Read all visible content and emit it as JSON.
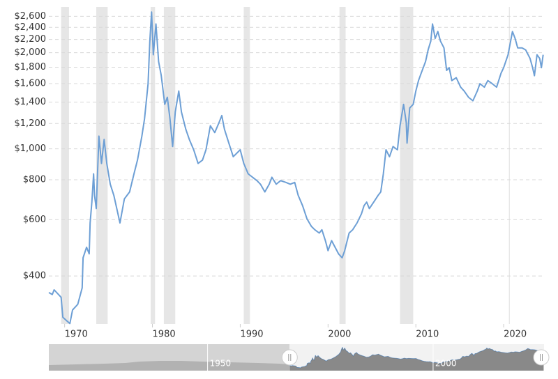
{
  "chart_data": {
    "type": "line",
    "log_scale": true,
    "grid": true,
    "xlim": [
      1968.2,
      2024.6
    ],
    "ylim": [
      283,
      2780
    ],
    "xticks": [
      1970,
      1980,
      1990,
      2000,
      2010,
      2020
    ],
    "yticks": [
      {
        "value": 400,
        "label": "$400"
      },
      {
        "value": 600,
        "label": "$600"
      },
      {
        "value": 800,
        "label": "$800"
      },
      {
        "value": 1000,
        "label": "$1,000"
      },
      {
        "value": 1200,
        "label": "$1,200"
      },
      {
        "value": 1400,
        "label": "$1,400"
      },
      {
        "value": 1600,
        "label": "$1,600"
      },
      {
        "value": 1800,
        "label": "$1,800"
      },
      {
        "value": 2000,
        "label": "$2,000"
      },
      {
        "value": 2200,
        "label": "$2,200"
      },
      {
        "value": 2400,
        "label": "$2,400"
      },
      {
        "value": 2600,
        "label": "$2,600"
      }
    ],
    "shaded_periods": [
      [
        1969.6,
        1970.5
      ],
      [
        1973.6,
        1974.9
      ],
      [
        1979.8,
        1980.3
      ],
      [
        1981.3,
        1982.6
      ],
      [
        1990.4,
        1991.1
      ],
      [
        2001.3,
        2002.0
      ],
      [
        2008.2,
        2009.7
      ],
      [
        2020.6,
        2020.7
      ]
    ],
    "shade_color": "#e6e6e6",
    "series": [
      {
        "color": "#6d9fd5",
        "x": [
          1968.2,
          1968.6,
          1968.8,
          1969.6,
          1969.8,
          1970.4,
          1970.6,
          1970.9,
          1971.5,
          1972.0,
          1972.1,
          1972.5,
          1972.8,
          1972.9,
          1973.1,
          1973.3,
          1973.4,
          1973.6,
          1973.9,
          1974.2,
          1974.5,
          1974.8,
          1975.2,
          1975.6,
          1976.3,
          1976.8,
          1977.4,
          1977.9,
          1978.3,
          1978.8,
          1979.1,
          1979.5,
          1979.7,
          1979.9,
          1980.1,
          1980.4,
          1980.7,
          1981.0,
          1981.4,
          1981.7,
          1982.0,
          1982.3,
          1982.6,
          1983.0,
          1983.3,
          1983.8,
          1984.2,
          1984.7,
          1985.2,
          1985.7,
          1986.1,
          1986.6,
          1987.1,
          1987.6,
          1987.9,
          1988.2,
          1988.7,
          1989.2,
          1990.0,
          1990.4,
          1990.9,
          1991.4,
          1991.9,
          1992.3,
          1992.8,
          1993.3,
          1993.6,
          1994.1,
          1994.6,
          1995.2,
          1995.7,
          1996.2,
          1996.6,
          1997.1,
          1997.6,
          1998.1,
          1998.5,
          1999.0,
          1999.3,
          1999.7,
          2000.0,
          2000.4,
          2000.8,
          2001.2,
          2001.6,
          2001.9,
          2002.4,
          2002.8,
          2003.3,
          2003.8,
          2004.1,
          2004.4,
          2004.7,
          2005.2,
          2005.7,
          2006.0,
          2006.3,
          2006.6,
          2007.0,
          2007.4,
          2007.9,
          2008.2,
          2008.6,
          2008.9,
          2009.0,
          2009.3,
          2009.7,
          2010.0,
          2010.3,
          2010.6,
          2011.1,
          2011.4,
          2011.7,
          2011.9,
          2012.2,
          2012.5,
          2012.8,
          2013.2,
          2013.5,
          2013.8,
          2014.1,
          2014.6,
          2015.1,
          2015.5,
          2016.0,
          2016.5,
          2017.0,
          2017.3,
          2017.8,
          2018.2,
          2018.7,
          2019.2,
          2019.7,
          2020.0,
          2020.5,
          2021.0,
          2021.3,
          2021.6,
          2022.1,
          2022.5,
          2023.0,
          2023.3,
          2023.5,
          2023.8,
          2024.1,
          2024.3,
          2024.5
        ],
        "values": [
          355,
          350,
          362,
          343,
          297,
          287,
          284,
          313,
          326,
          367,
          456,
          492,
          469,
          586,
          681,
          835,
          715,
          650,
          1096,
          900,
          1070,
          900,
          775,
          715,
          586,
          697,
          733,
          835,
          922,
          1096,
          1241,
          1599,
          2173,
          2680,
          1970,
          2460,
          1875,
          1700,
          1378,
          1450,
          1241,
          1017,
          1305,
          1517,
          1305,
          1151,
          1070,
          993,
          900,
          922,
          993,
          1181,
          1124,
          1211,
          1271,
          1151,
          1042,
          945,
          993,
          900,
          835,
          815,
          795,
          775,
          733,
          775,
          815,
          775,
          795,
          785,
          775,
          785,
          715,
          664,
          604,
          572,
          558,
          545,
          558,
          516,
          480,
          516,
          492,
          469,
          456,
          480,
          545,
          558,
          586,
          626,
          664,
          681,
          650,
          681,
          715,
          733,
          835,
          993,
          945,
          1017,
          993,
          1181,
          1378,
          1211,
          1042,
          1343,
          1378,
          1517,
          1635,
          1724,
          1875,
          2040,
          2173,
          2460,
          2215,
          2330,
          2173,
          2070,
          1760,
          1795,
          1635,
          1670,
          1560,
          1517,
          1450,
          1414,
          1517,
          1599,
          1560,
          1635,
          1599,
          1560,
          1724,
          1795,
          1970,
          2330,
          2215,
          2070,
          2070,
          2040,
          1919,
          1795,
          1694,
          1970,
          1919,
          1795,
          1970
        ]
      }
    ],
    "navigator": {
      "xlim": [
        1914.8,
        2024.6
      ],
      "xticks": [
        1950,
        2000
      ]
    }
  }
}
